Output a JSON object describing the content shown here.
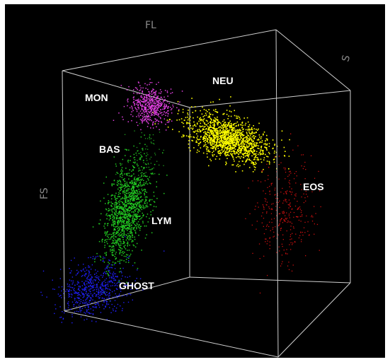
{
  "chart_data": {
    "type": "scatter",
    "dimensions": "3d",
    "background_color": "#000000",
    "box_edge_color": "#cfcfcf",
    "axes": {
      "x": {
        "label": "FL"
      },
      "y": {
        "label": "FS"
      },
      "z": {
        "label": "S"
      }
    },
    "grid": false,
    "legend": "none",
    "series": [
      {
        "name": "NEU",
        "color": "#ffff00",
        "relative_density": "high"
      },
      {
        "name": "MON",
        "color": "#e040e0",
        "relative_density": "medium"
      },
      {
        "name": "BAS",
        "color": "#20a020",
        "relative_density": "sparse"
      },
      {
        "name": "LYM",
        "color": "#22cc22",
        "relative_density": "high"
      },
      {
        "name": "GHOST",
        "color": "#2020ff",
        "relative_density": "medium"
      },
      {
        "name": "EOS",
        "color": "#cc1010",
        "relative_density": "sparse"
      }
    ]
  }
}
